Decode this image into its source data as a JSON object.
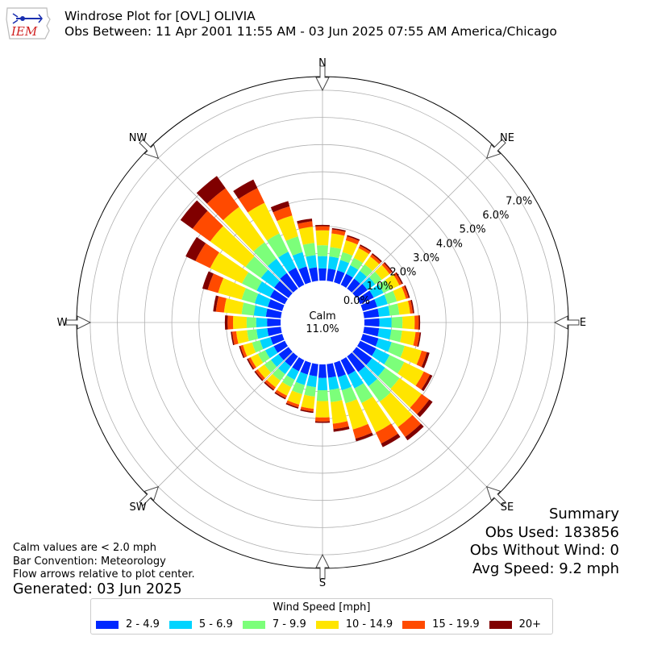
{
  "header": {
    "logo_text": "IEM",
    "title": "Windrose Plot for [OVL] OLIVIA",
    "subtitle": "Obs Between: 11 Apr 2001 11:55 AM - 03 Jun 2025 07:55 AM America/Chicago"
  },
  "compass": {
    "n": "N",
    "ne": "NE",
    "e": "E",
    "se": "SE",
    "s": "S",
    "sw": "SW",
    "w": "W",
    "nw": "NW"
  },
  "center": {
    "label": "Calm",
    "value": "11.0%"
  },
  "summary": {
    "title": "Summary",
    "obs_used": "Obs Used: 183856",
    "obs_without_wind": "Obs Without Wind: 0",
    "avg_speed": "Avg Speed: 9.2 mph"
  },
  "notes": {
    "calm": "Calm values are < 2.0 mph",
    "convention": "Bar Convention: Meteorology",
    "flow": "Flow arrows relative to plot center.",
    "generated": "Generated: 03 Jun 2025"
  },
  "legend": {
    "title": "Wind Speed [mph]",
    "items": [
      {
        "label": "2 - 4.9",
        "color": "#0028ff"
      },
      {
        "label": "5 - 6.9",
        "color": "#00d4ff"
      },
      {
        "label": "7 - 9.9",
        "color": "#7cff7a"
      },
      {
        "label": "10 - 14.9",
        "color": "#ffe500"
      },
      {
        "label": "15 - 19.9",
        "color": "#ff4a00"
      },
      {
        "label": "20+",
        "color": "#800000"
      }
    ]
  },
  "chart_data": {
    "type": "windrose",
    "radial_unit": "%",
    "radial_ticks": [
      "0.0%",
      "1.0%",
      "2.0%",
      "3.0%",
      "4.0%",
      "5.0%",
      "6.0%",
      "7.0%"
    ],
    "rlim": [
      0,
      7.5
    ],
    "calm_percent": 11.0,
    "speed_bins": [
      "2 - 4.9",
      "5 - 6.9",
      "7 - 9.9",
      "10 - 14.9",
      "15 - 19.9",
      "20+"
    ],
    "directions_deg": [
      0,
      10,
      20,
      30,
      40,
      50,
      60,
      70,
      80,
      90,
      100,
      110,
      120,
      130,
      140,
      150,
      160,
      170,
      180,
      190,
      200,
      210,
      220,
      230,
      240,
      250,
      260,
      270,
      280,
      290,
      300,
      310,
      320,
      330,
      340,
      350
    ],
    "series": [
      {
        "name": "2 - 4.9",
        "values": [
          0.45,
          0.45,
          0.45,
          0.45,
          0.45,
          0.5,
          0.55,
          0.55,
          0.55,
          0.55,
          0.55,
          0.6,
          0.65,
          0.7,
          0.7,
          0.6,
          0.55,
          0.5,
          0.5,
          0.45,
          0.45,
          0.45,
          0.45,
          0.45,
          0.45,
          0.45,
          0.5,
          0.5,
          0.55,
          0.55,
          0.6,
          0.65,
          0.7,
          0.7,
          0.6,
          0.5
        ]
      },
      {
        "name": "5 - 6.9",
        "values": [
          0.45,
          0.45,
          0.4,
          0.35,
          0.35,
          0.35,
          0.4,
          0.4,
          0.4,
          0.45,
          0.45,
          0.5,
          0.55,
          0.6,
          0.65,
          0.55,
          0.5,
          0.45,
          0.45,
          0.4,
          0.4,
          0.35,
          0.35,
          0.35,
          0.35,
          0.4,
          0.4,
          0.4,
          0.45,
          0.5,
          0.55,
          0.6,
          0.65,
          0.65,
          0.55,
          0.45
        ]
      },
      {
        "name": "7 - 9.9",
        "values": [
          0.4,
          0.35,
          0.3,
          0.3,
          0.3,
          0.3,
          0.3,
          0.35,
          0.35,
          0.4,
          0.4,
          0.5,
          0.6,
          0.65,
          0.7,
          0.6,
          0.5,
          0.45,
          0.4,
          0.35,
          0.35,
          0.3,
          0.3,
          0.3,
          0.3,
          0.3,
          0.35,
          0.35,
          0.45,
          0.5,
          0.6,
          0.7,
          0.75,
          0.75,
          0.6,
          0.45
        ]
      },
      {
        "name": "10 - 14.9",
        "values": [
          0.55,
          0.5,
          0.45,
          0.4,
          0.35,
          0.35,
          0.35,
          0.35,
          0.4,
          0.45,
          0.5,
          0.65,
          0.8,
          1.0,
          1.15,
          1.2,
          1.0,
          0.8,
          0.6,
          0.45,
          0.4,
          0.35,
          0.3,
          0.3,
          0.3,
          0.35,
          0.4,
          0.5,
          0.65,
          0.9,
          1.3,
          1.6,
          1.6,
          1.25,
          0.8,
          0.6
        ]
      },
      {
        "name": "15 - 19.9",
        "values": [
          0.15,
          0.15,
          0.15,
          0.1,
          0.1,
          0.1,
          0.1,
          0.1,
          0.1,
          0.15,
          0.15,
          0.2,
          0.25,
          0.35,
          0.45,
          0.45,
          0.35,
          0.2,
          0.15,
          0.1,
          0.1,
          0.1,
          0.1,
          0.1,
          0.1,
          0.1,
          0.15,
          0.2,
          0.3,
          0.4,
          0.6,
          0.8,
          0.85,
          0.6,
          0.35,
          0.2
        ]
      },
      {
        "name": "20+",
        "values": [
          0.05,
          0.05,
          0.05,
          0.05,
          0.05,
          0.05,
          0.05,
          0.05,
          0.05,
          0.05,
          0.05,
          0.1,
          0.1,
          0.15,
          0.15,
          0.15,
          0.1,
          0.1,
          0.05,
          0.05,
          0.05,
          0.05,
          0.05,
          0.05,
          0.05,
          0.05,
          0.05,
          0.1,
          0.1,
          0.2,
          0.4,
          0.55,
          0.55,
          0.35,
          0.2,
          0.1
        ]
      }
    ]
  }
}
